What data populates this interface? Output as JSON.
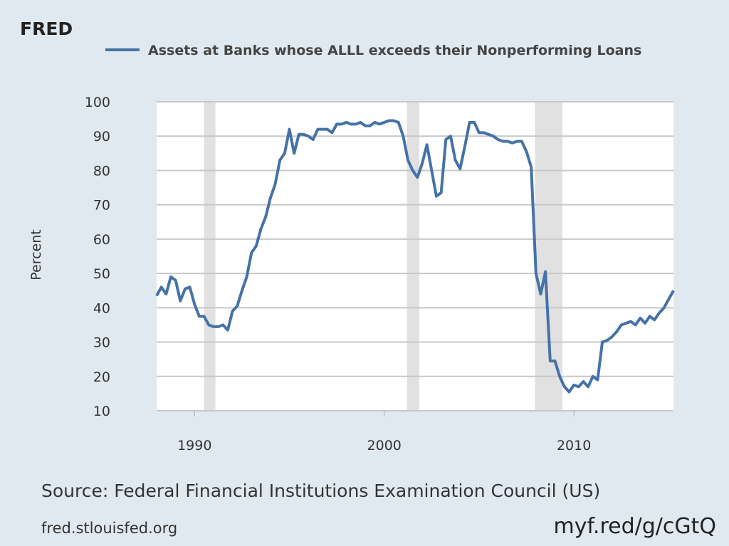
{
  "logo": "FRED",
  "chart_data": {
    "type": "line",
    "series": [
      {
        "name": "Assets at Banks whose ALLL exceeds their Nonperforming Loans",
        "color": "#4572a7",
        "values": [
          43.5,
          46,
          44,
          49,
          48,
          42,
          45.5,
          46,
          41,
          37.5,
          37.5,
          35,
          34.5,
          34.5,
          35,
          33.5,
          39,
          40.5,
          45,
          49,
          56,
          58,
          63,
          66.5,
          72,
          76,
          83,
          85,
          92,
          85,
          90.5,
          90.5,
          90,
          89,
          92,
          92,
          92,
          91,
          93.5,
          93.5,
          94,
          93.5,
          93.5,
          94,
          93,
          93,
          94,
          93.5,
          94,
          94.5,
          94.5,
          94,
          90,
          83,
          80,
          78,
          82,
          87.5,
          80,
          72.5,
          73.5,
          89,
          90,
          83,
          80.5,
          87,
          94,
          94,
          91,
          91,
          90.5,
          90,
          89,
          88.5,
          88.5,
          88,
          88.5,
          88.5,
          85.5,
          81,
          50,
          44,
          50.5,
          24.5,
          24.5,
          20,
          17,
          15.5,
          17.5,
          17,
          18.5,
          17,
          20,
          19,
          30,
          30.5,
          31.5,
          33,
          35,
          35.5,
          36,
          35,
          37,
          35.5,
          37.5,
          36.5,
          38.5,
          40,
          42.5,
          45
        ]
      }
    ],
    "x": [
      1988,
      1988.25,
      1988.5,
      1988.75,
      1989,
      1989.25,
      1989.5,
      1989.75,
      1990,
      1990.25,
      1990.5,
      1990.75,
      1991,
      1991.25,
      1991.5,
      1991.75,
      1992,
      1992.25,
      1992.5,
      1992.75,
      1993,
      1993.25,
      1993.5,
      1993.75,
      1994,
      1994.25,
      1994.5,
      1994.75,
      1995,
      1995.25,
      1995.5,
      1995.75,
      1996,
      1996.25,
      1996.5,
      1996.75,
      1997,
      1997.25,
      1997.5,
      1997.75,
      1998,
      1998.25,
      1998.5,
      1998.75,
      1999,
      1999.25,
      1999.5,
      1999.75,
      2000,
      2000.25,
      2000.5,
      2000.75,
      2001,
      2001.25,
      2001.5,
      2001.75,
      2002,
      2002.25,
      2002.5,
      2002.75,
      2003,
      2003.25,
      2003.5,
      2003.75,
      2004,
      2004.25,
      2004.5,
      2004.75,
      2005,
      2005.25,
      2005.5,
      2005.75,
      2006,
      2006.25,
      2006.5,
      2006.75,
      2007,
      2007.25,
      2007.5,
      2007.75,
      2008,
      2008.25,
      2008.5,
      2008.75,
      2009,
      2009.25,
      2009.5,
      2009.75,
      2010,
      2010.25,
      2010.5,
      2010.75,
      2011,
      2011.25,
      2011.5,
      2011.75,
      2012,
      2012.25,
      2012.5,
      2012.75,
      2013,
      2013.25,
      2013.5,
      2013.75,
      2014,
      2014.25,
      2014.5,
      2014.75,
      2015,
      2015.25
    ],
    "recessions": [
      [
        1990.5,
        1991.1
      ],
      [
        2001.2,
        2001.85
      ],
      [
        2007.95,
        2009.4
      ]
    ],
    "xlim": [
      1988,
      2015.25
    ],
    "xticks": [
      1990,
      2000,
      2010
    ],
    "ylim": [
      10,
      100
    ],
    "yticks": [
      10,
      20,
      30,
      40,
      50,
      60,
      70,
      80,
      90,
      100
    ],
    "ylabel": "Percent",
    "grid": true,
    "source": "Source: Federal Financial Institutions Examination Council (US)",
    "site": "fred.stlouisfed.org",
    "shortlink": "myf.red/g/cGtQ"
  }
}
